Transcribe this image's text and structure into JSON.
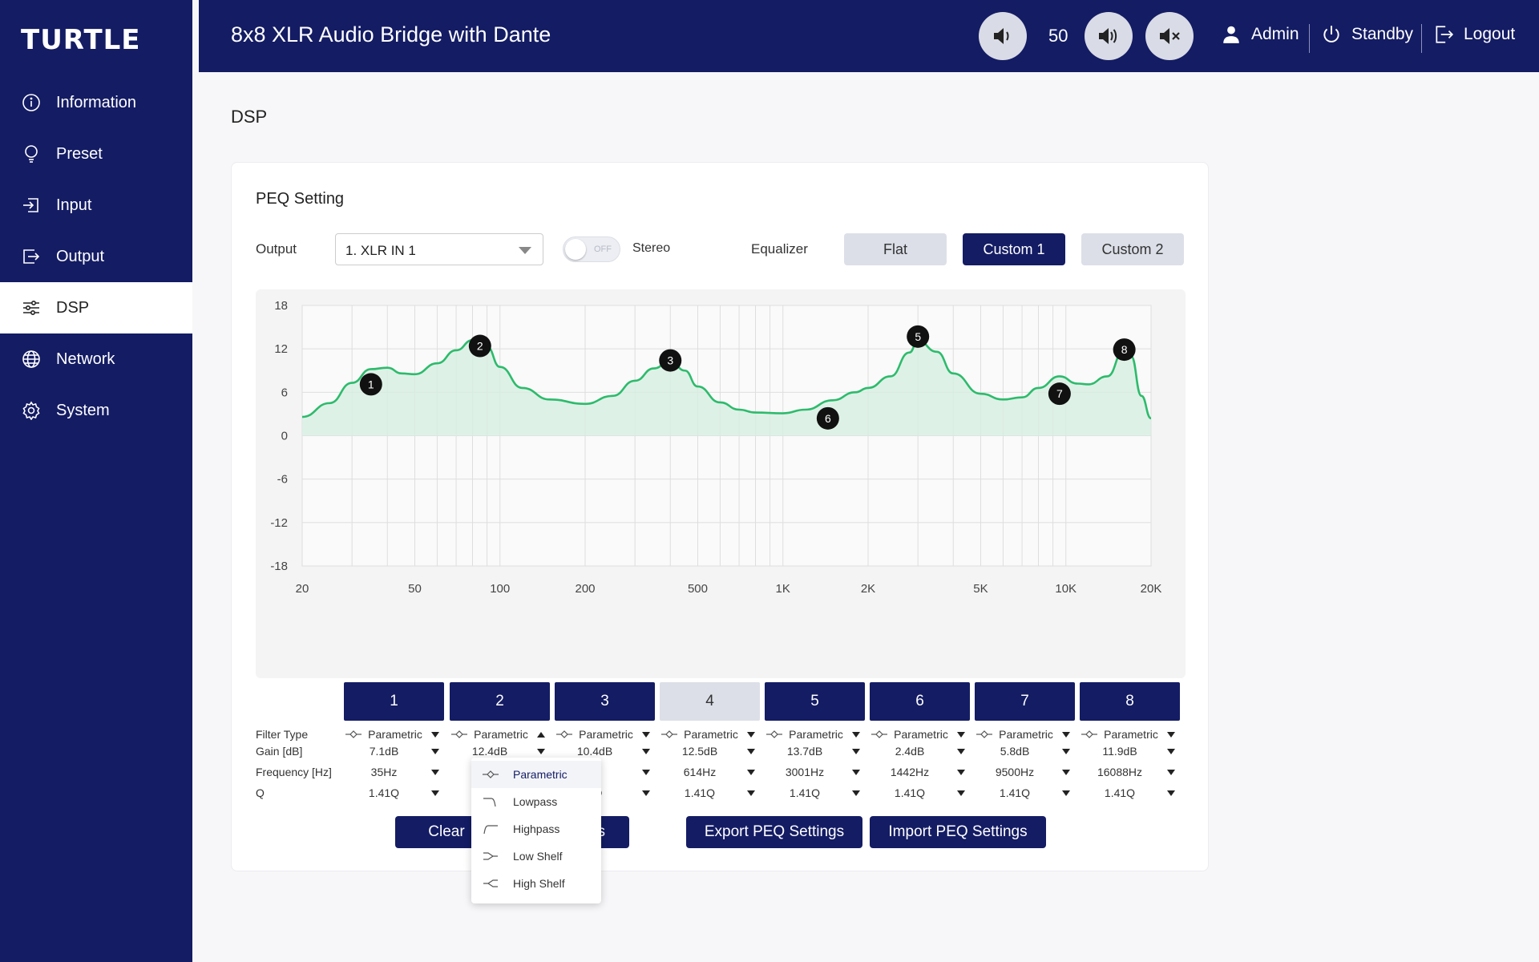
{
  "brand": {
    "logo": "TURTLE"
  },
  "sidebar": {
    "items": [
      {
        "label": "Information",
        "icon": "info-icon"
      },
      {
        "label": "Preset",
        "icon": "bulb-icon"
      },
      {
        "label": "Input",
        "icon": "input-icon"
      },
      {
        "label": "Output",
        "icon": "output-icon"
      },
      {
        "label": "DSP",
        "icon": "sliders-icon",
        "active": true
      },
      {
        "label": "Network",
        "icon": "globe-icon"
      },
      {
        "label": "System",
        "icon": "gear-icon"
      }
    ]
  },
  "header": {
    "title": "8x8 XLR Audio Bridge with Dante",
    "volume": "50",
    "user": "Admin",
    "standby": "Standby",
    "logout": "Logout"
  },
  "page": {
    "title": "DSP"
  },
  "peq": {
    "title": "PEQ Setting",
    "output_label": "Output",
    "output_value": "1. XLR IN 1",
    "toggle_state": "OFF",
    "stereo_label": "Stereo",
    "equalizer_label": "Equalizer",
    "presets": [
      "Flat",
      "Custom 1",
      "Custom 2"
    ],
    "active_preset": 1
  },
  "chart_data": {
    "type": "line",
    "x_scale": "log",
    "xlim": [
      20,
      20000
    ],
    "ylim": [
      -18,
      18
    ],
    "y_ticks": [
      "18",
      "12",
      "6",
      "0",
      "-6",
      "-12",
      "-18"
    ],
    "x_ticks": [
      {
        "value": 20,
        "label": "20"
      },
      {
        "value": 50,
        "label": "50"
      },
      {
        "value": 100,
        "label": "100"
      },
      {
        "value": 200,
        "label": "200"
      },
      {
        "value": 500,
        "label": "500"
      },
      {
        "value": 1000,
        "label": "1K"
      },
      {
        "value": 2000,
        "label": "2K"
      },
      {
        "value": 5000,
        "label": "5K"
      },
      {
        "value": 10000,
        "label": "10K"
      },
      {
        "value": 20000,
        "label": "20K"
      }
    ],
    "curve": [
      [
        20,
        2.6
      ],
      [
        25,
        4.5
      ],
      [
        30,
        7.3
      ],
      [
        35,
        9.2
      ],
      [
        40,
        9.4
      ],
      [
        45,
        8.6
      ],
      [
        50,
        8.5
      ],
      [
        60,
        10.0
      ],
      [
        70,
        11.8
      ],
      [
        80,
        13.2
      ],
      [
        90,
        12.3
      ],
      [
        100,
        9.5
      ],
      [
        120,
        6.6
      ],
      [
        150,
        5.0
      ],
      [
        200,
        4.4
      ],
      [
        250,
        5.5
      ],
      [
        300,
        7.6
      ],
      [
        350,
        9.3
      ],
      [
        400,
        10.4
      ],
      [
        450,
        9.0
      ],
      [
        500,
        6.8
      ],
      [
        600,
        4.6
      ],
      [
        700,
        3.6
      ],
      [
        800,
        3.2
      ],
      [
        1000,
        3.1
      ],
      [
        1200,
        3.6
      ],
      [
        1500,
        4.9
      ],
      [
        1800,
        6.0
      ],
      [
        2000,
        6.6
      ],
      [
        2400,
        8.2
      ],
      [
        2800,
        11.5
      ],
      [
        3000,
        13.1
      ],
      [
        3500,
        11.6
      ],
      [
        4000,
        8.6
      ],
      [
        5000,
        5.8
      ],
      [
        6000,
        5.0
      ],
      [
        7000,
        5.3
      ],
      [
        8000,
        6.6
      ],
      [
        9500,
        8.2
      ],
      [
        11000,
        7.2
      ],
      [
        12000,
        7.1
      ],
      [
        14000,
        8.2
      ],
      [
        16088,
        11.9
      ],
      [
        17000,
        11.0
      ],
      [
        18500,
        5.5
      ],
      [
        20000,
        2.4
      ]
    ],
    "points": [
      {
        "label": "1",
        "x": 35,
        "y": 7.1
      },
      {
        "label": "2",
        "x": 85,
        "y": 12.4
      },
      {
        "label": "3",
        "x": 400,
        "y": 10.4
      },
      {
        "label": "5",
        "x": 3001,
        "y": 13.7
      },
      {
        "label": "6",
        "x": 1442,
        "y": 2.4
      },
      {
        "label": "7",
        "x": 9500,
        "y": 5.8
      },
      {
        "label": "8",
        "x": 16088,
        "y": 11.9
      }
    ]
  },
  "bands": {
    "tabs": [
      "1",
      "2",
      "3",
      "4",
      "5",
      "6",
      "7",
      "8"
    ],
    "active_tab": 3,
    "row_labels": {
      "type": "Filter Type",
      "gain": "Gain [dB]",
      "freq": "Frequency [Hz]",
      "q": "Q"
    },
    "filter_type": [
      "Parametric",
      "Parametric",
      "Parametric",
      "Parametric",
      "Parametric",
      "Parametric",
      "Parametric",
      "Parametric"
    ],
    "gain": [
      "7.1dB",
      "12.4dB",
      "10.4dB",
      "12.5dB",
      "13.7dB",
      "2.4dB",
      "5.8dB",
      "11.9dB"
    ],
    "freq": [
      "35Hz",
      "",
      "Hz",
      "614Hz",
      "3001Hz",
      "1442Hz",
      "9500Hz",
      "16088Hz"
    ],
    "q": [
      "1.41Q",
      "",
      "1Q",
      "1.41Q",
      "1.41Q",
      "1.41Q",
      "1.41Q",
      "1.41Q"
    ]
  },
  "actions": {
    "clear": "Clear",
    "settings": "Settings",
    "export": "Export PEQ Settings",
    "import": "Import PEQ Settings"
  },
  "dropdown": {
    "options": [
      "Parametric",
      "Lowpass",
      "Highpass",
      "Low Shelf",
      "High Shelf"
    ],
    "selected": 0
  },
  "colors": {
    "navy": "#141c64",
    "curve": "#2dbb6c",
    "fill": "#d8efe3"
  }
}
